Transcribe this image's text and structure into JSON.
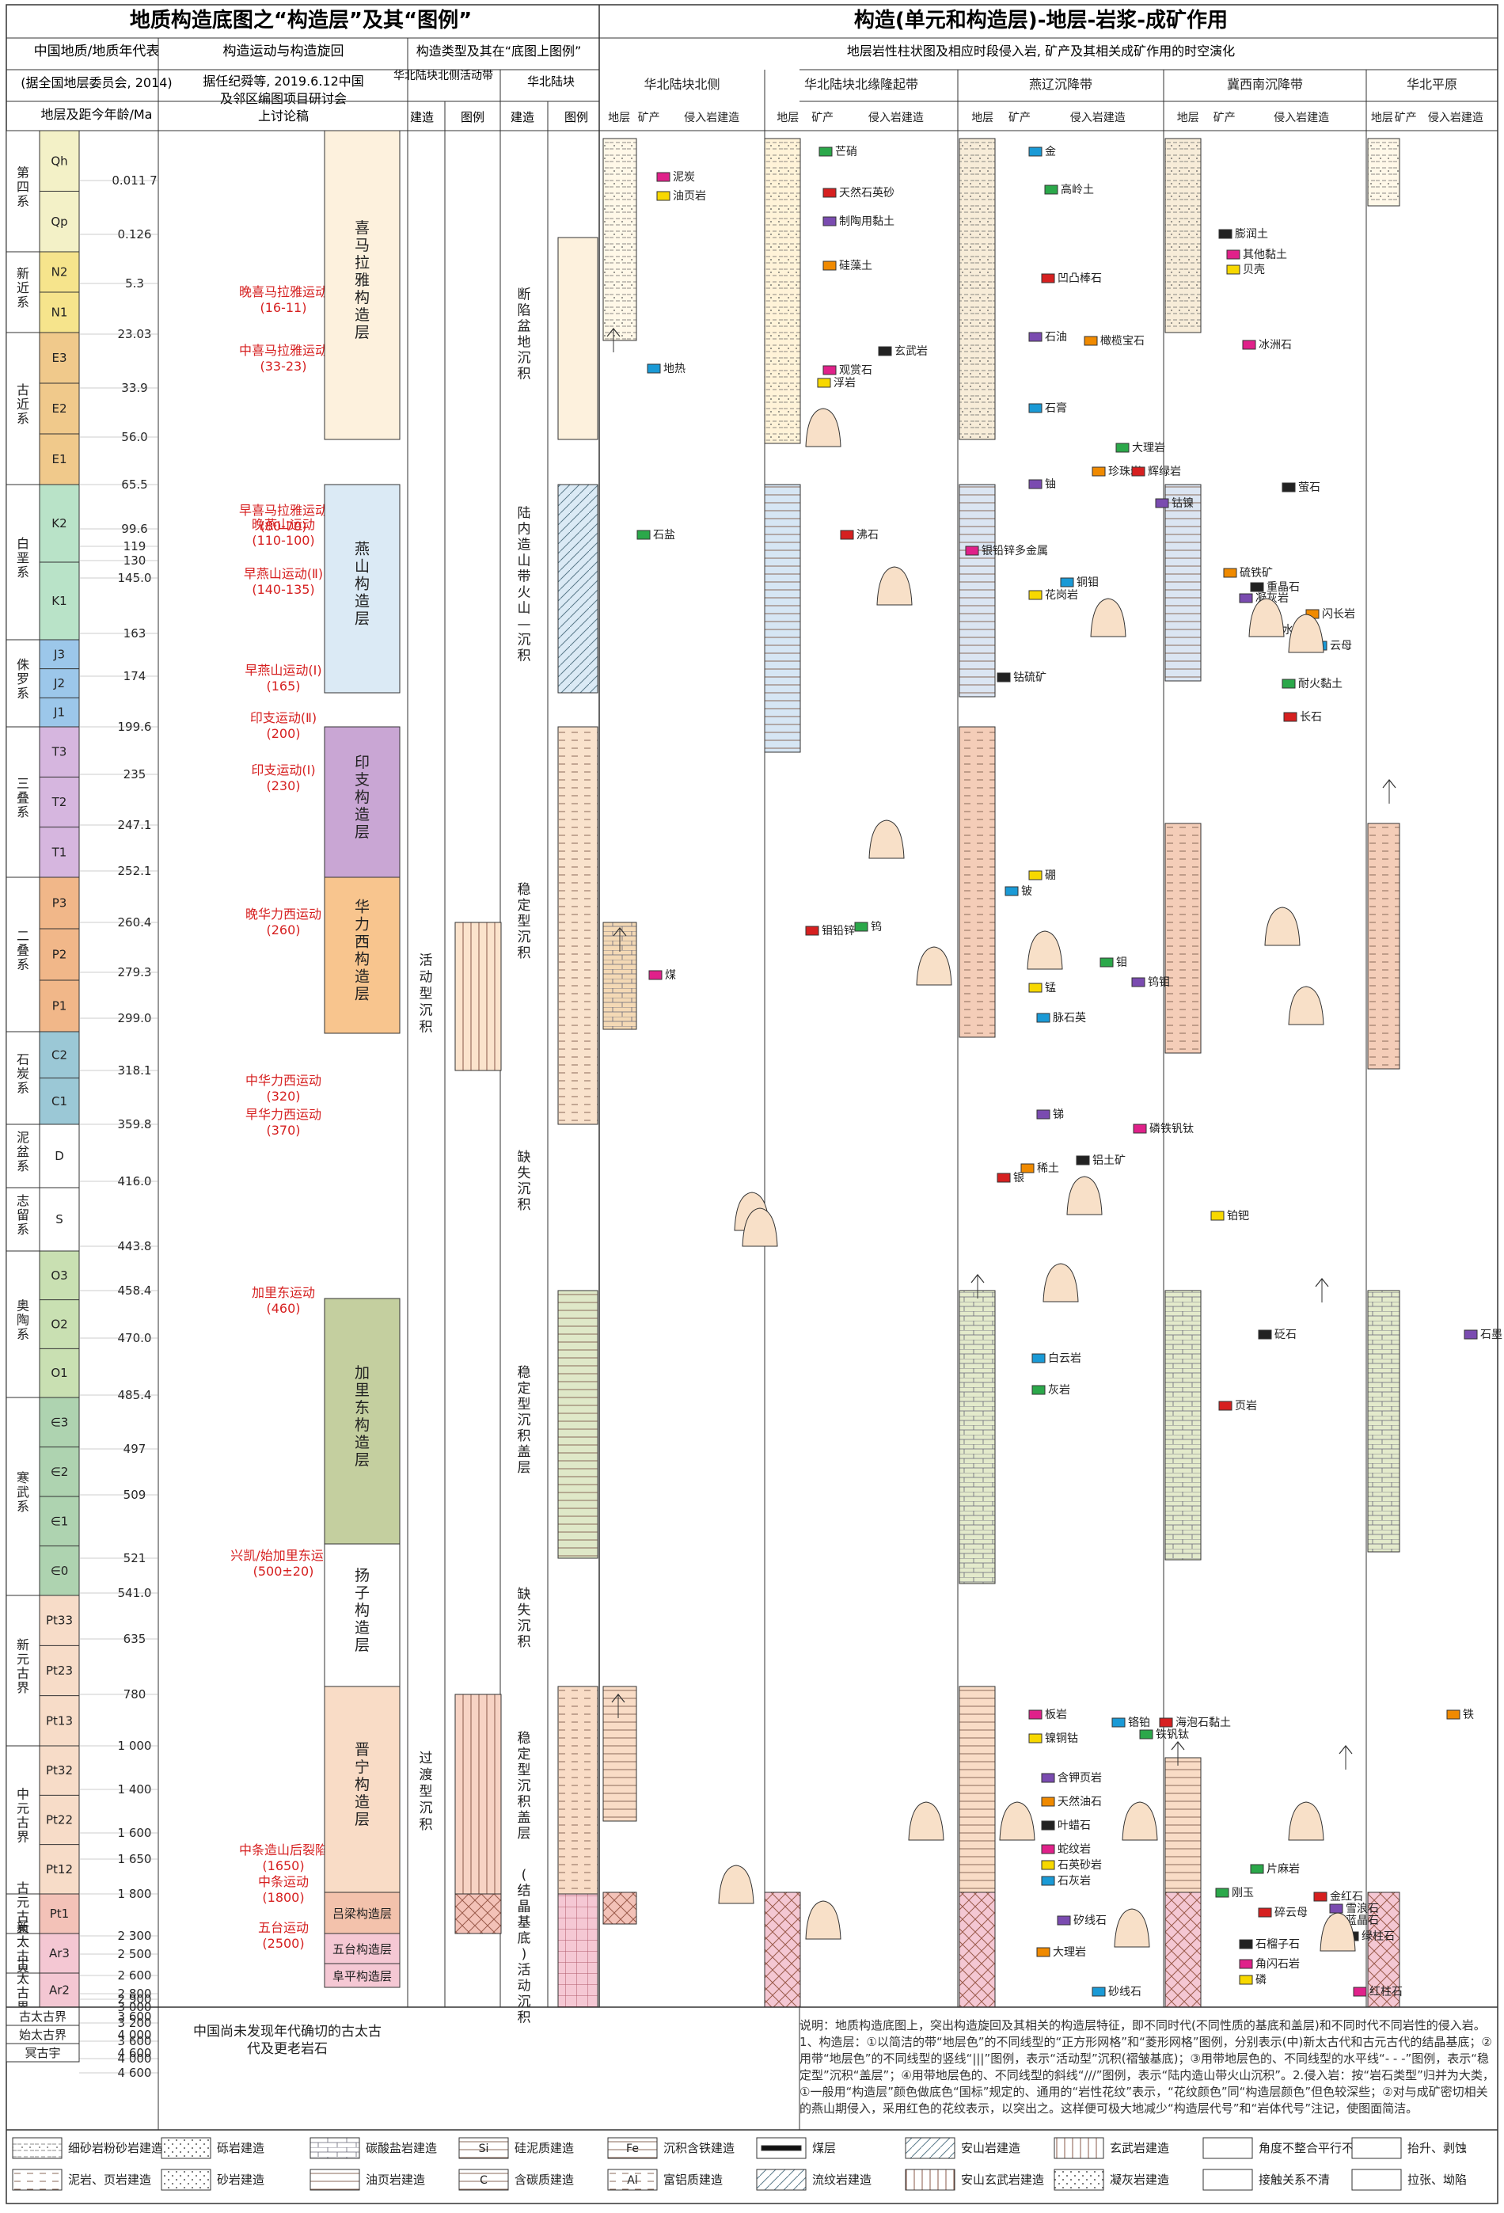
{
  "titles": {
    "left": "地质构造底图之“构造层”及其“图例”",
    "right": "构造(单元和构造层)-地层-岩浆-成矿作用"
  },
  "headers": {
    "c1_line1": "中国地质/地质年代表",
    "c1_line2": "(据全国地层委员会, 2014)",
    "c1_line3": "地层及距今年龄/Ma",
    "c2_line1": "构造运动与构造旋回",
    "c2_line2": "据任纪舜等, 2019.6.12中国",
    "c2_line3": "及邻区编图项目研讨会",
    "c2_line4": "上讨论稿",
    "c3_title": "构造类型及其在“底图上图例”",
    "c3_sub": "华北陆块北侧活动带",
    "c3_a": "建造",
    "c3_b": "图例",
    "c4_sub": "华北陆块",
    "c4_a": "建造",
    "c4_b": "图例",
    "right_sub": "地层岩性柱状图及相应时段侵入岩, 矿产及其相关成矿作用的时空演化"
  },
  "units": [
    {
      "name": "华北陆块北侧",
      "cols": [
        "地层",
        "矿产",
        "侵入岩建造"
      ]
    },
    {
      "name": "华北陆块北缘隆起带",
      "cols": [
        "地层",
        "矿产",
        "侵入岩建造"
      ]
    },
    {
      "name": "燕辽沉降带",
      "cols": [
        "地层",
        "矿产",
        "侵入岩建造"
      ]
    },
    {
      "name": "冀西南沉降带",
      "cols": [
        "地层",
        "矿产",
        "侵入岩建造"
      ]
    },
    {
      "name": "华北平原",
      "cols": [
        "地层",
        "矿产",
        "侵入岩建造"
      ]
    }
  ],
  "systems": [
    {
      "name": "第四系",
      "color": "#f3f1c7",
      "series": [
        {
          "code": "Qh"
        },
        {
          "code": "Qp"
        }
      ]
    },
    {
      "name": "新近系",
      "color": "#f6e48c",
      "series": [
        {
          "code": "N2"
        },
        {
          "code": "N1"
        }
      ]
    },
    {
      "name": "古近系",
      "color": "#f0c98b",
      "series": [
        {
          "code": "E3"
        },
        {
          "code": "E2"
        },
        {
          "code": "E1"
        }
      ]
    },
    {
      "name": "白垩系",
      "color": "#b9e3c8",
      "series": [
        {
          "code": "K2"
        },
        {
          "code": "K1"
        }
      ]
    },
    {
      "name": "侏罗系",
      "color": "#9cc7ea",
      "series": [
        {
          "code": "J3"
        },
        {
          "code": "J2"
        },
        {
          "code": "J1"
        }
      ]
    },
    {
      "name": "三叠系",
      "color": "#d6b6df",
      "series": [
        {
          "code": "T3"
        },
        {
          "code": "T2"
        },
        {
          "code": "T1"
        }
      ]
    },
    {
      "name": "二叠系",
      "color": "#f1b789",
      "series": [
        {
          "code": "P3"
        },
        {
          "code": "P2"
        },
        {
          "code": "P1"
        }
      ]
    },
    {
      "name": "石炭系",
      "color": "#9bc8d6",
      "series": [
        {
          "code": "C2"
        },
        {
          "code": "C1"
        }
      ]
    },
    {
      "name": "泥盆系",
      "color": "#ffffff",
      "series": [
        {
          "code": "D"
        }
      ]
    },
    {
      "name": "志留系",
      "color": "#ffffff",
      "series": [
        {
          "code": "S"
        }
      ]
    },
    {
      "name": "奥陶系",
      "color": "#c9e0b2",
      "series": [
        {
          "code": "O3"
        },
        {
          "code": "O2"
        },
        {
          "code": "O1"
        }
      ]
    },
    {
      "name": "寒武系",
      "color": "#aed3b0",
      "series": [
        {
          "code": "∈3"
        },
        {
          "code": "∈2"
        },
        {
          "code": "∈1"
        },
        {
          "code": "∈0"
        }
      ]
    },
    {
      "name": "新元古界",
      "color": "#f7dcc8",
      "series": [
        {
          "code": "Pt33"
        },
        {
          "code": "Pt23"
        },
        {
          "code": "Pt13"
        }
      ]
    },
    {
      "name": "中元古界",
      "color": "#f7dcc8",
      "series": [
        {
          "code": "Pt32"
        },
        {
          "code": "Pt22"
        },
        {
          "code": "Pt12"
        }
      ]
    },
    {
      "name": "古元古界",
      "color": "#f3c2b8",
      "series": [
        {
          "code": "Pt1"
        }
      ]
    },
    {
      "name": "新太古界",
      "color": "#f4c7d3",
      "series": [
        {
          "code": "Ar3"
        }
      ]
    },
    {
      "name": "古太古界",
      "color": "#f4c7d3",
      "series": [
        {
          "code": "Ar2"
        }
      ]
    }
  ],
  "ages": [
    "0.011 7",
    "0.126",
    "5.3",
    "23.03",
    "33.9",
    "56.0",
    "65.5",
    "99.6",
    "119",
    "130",
    "145.0",
    "163",
    "174",
    "199.6",
    "235",
    "247.1",
    "252.1",
    "260.4",
    "279.3",
    "299.0",
    "318.1",
    "359.8",
    "416.0",
    "443.8",
    "458.4",
    "470.0",
    "485.4",
    "497",
    "509",
    "521",
    "541.0",
    "635",
    "780",
    "1 000",
    "1 400",
    "1 600",
    "1 650",
    "1 800",
    "2 300",
    "2 500",
    "2 600",
    "2 800",
    "2 900",
    "3 000",
    "3 200",
    "3 600",
    "4 000",
    "4 600"
  ],
  "movements": [
    {
      "name": "晚喜马拉雅运动",
      "age": "(16-11)"
    },
    {
      "name": "中喜马拉雅运动",
      "age": "(33-23)"
    },
    {
      "name": "早喜马拉雅运动",
      "age": "(80-70)"
    },
    {
      "name": "晚燕山运动",
      "age": "(110-100)"
    },
    {
      "name": "早燕山运动(Ⅱ)",
      "age": "(140-135)"
    },
    {
      "name": "早燕山运动(Ⅰ)",
      "age": "(165)"
    },
    {
      "name": "印支运动(Ⅱ)",
      "age": "(200)"
    },
    {
      "name": "印支运动(Ⅰ)",
      "age": "(230)"
    },
    {
      "name": "晚华力西运动",
      "age": "(260)"
    },
    {
      "name": "中华力西运动",
      "age": "(320)"
    },
    {
      "name": "早华力西运动",
      "age": "(370)"
    },
    {
      "name": "加里东运动",
      "age": "(460)"
    },
    {
      "name": "兴凯/始加里东运动",
      "age": "(500±20)"
    },
    {
      "name": "中条造山后裂陷",
      "age": "(1650)"
    },
    {
      "name": "中条运动",
      "age": "(1800)"
    },
    {
      "name": "五台运动",
      "age": "(2500)"
    }
  ],
  "layers": [
    {
      "name": "喜马拉雅构造层",
      "color": "#fdf1dd"
    },
    {
      "name": "燕山构造层",
      "color": "#dbeaf5"
    },
    {
      "name": "印支构造层",
      "color": "#c9a6d4"
    },
    {
      "name": "华力西构造层",
      "color": "#f8c58e"
    },
    {
      "name": "加里东构造层",
      "color": "#c4cf9f"
    },
    {
      "name": "扬子构造层",
      "color": "#ffffff"
    },
    {
      "name": "晋宁构造层",
      "color": "#f9dcc6"
    },
    {
      "name": "吕梁构造层",
      "color": "#f3c2ac"
    },
    {
      "name": "五台构造层",
      "color": "#f5c8d4"
    },
    {
      "name": "阜平构造层",
      "color": "#f5c8d4"
    }
  ],
  "north_belt": [
    {
      "name": "活动型沉积",
      "color": "#fbe3cc"
    },
    {
      "name": "过渡型沉积",
      "color": "#f7d3c4"
    }
  ],
  "craton_types": [
    {
      "name": "断陷盆地沉积",
      "color": "#fdf1dd"
    },
    {
      "name": "陆内造山带火山—沉积",
      "color": "#dbeaf5"
    },
    {
      "name": "稳定型沉积",
      "color": "#f9e2cc"
    },
    {
      "name": "缺失沉积",
      "color": "#ffffff"
    },
    {
      "name": "稳定型沉积盖层",
      "color": "#dfe8c8"
    },
    {
      "name": "缺失沉积",
      "color": "#ffffff"
    },
    {
      "name": "稳定型沉积盖层",
      "color": "#f9dcc6"
    },
    {
      "name": "(结晶基底)活动沉积",
      "color": "#f5c8d4"
    }
  ],
  "bottom_rows": [
    {
      "name": "古太古界",
      "age": "3 600"
    },
    {
      "name": "始太古界",
      "age": "4 000"
    },
    {
      "name": "冥古宇",
      "age": "4 600"
    }
  ],
  "side_note": "中国尚未发现年代确切的古太古代及更老岩石",
  "note": "说明：地质构造底图上，突出构造旋回及其相关的构造层特征，即不同时代(不同性质的基底和盖层)和不同时代不同岩性的侵入岩。1、构造层：①以简洁的带“地层色”的不同线型的“正方形网格”和“菱形网格”图例，分别表示(中)新太古代和古元古代的结晶基底；②用带“地层色”的不同线型的竖线“|||”图例，表示“活动型”沉积(褶皱基底)；③用带地层色的、不同线型的水平线“- - -”图例，表示“稳定型”沉积“盖层”；④用带地层色的、不同线型的斜线“///”图例，表示“陆内造山带火山沉积”。2.侵入岩：按“岩石类型”归并为大类，①一般用“构造层”颜色做底色“国标”规定的、通用的“岩性花纹”表示，“花纹颜色”同“构造层颜色”但色较深些；②对与成矿密切相关的燕山期侵入，采用红色的花纹表示，以突出之。这样便可极大地减少“构造层代号”和“岩体代号”注记，使图面简洁。",
  "legend": [
    {
      "label": "细砂岩粉砂岩建造"
    },
    {
      "label": "砾岩建造"
    },
    {
      "label": "碳酸盐岩建造"
    },
    {
      "label": "硅泥质建造",
      "sym": "Si"
    },
    {
      "label": "沉积含铁建造",
      "sym": "Fe"
    },
    {
      "label": "煤层"
    },
    {
      "label": "安山岩建造"
    },
    {
      "label": "玄武岩建造"
    },
    {
      "label": "角度不整合平行不整合"
    },
    {
      "label": "抬升、剥蚀"
    },
    {
      "label": "泥岩、页岩建造"
    },
    {
      "label": "砂岩建造"
    },
    {
      "label": "油页岩建造"
    },
    {
      "label": "含碳质建造",
      "sym": "C"
    },
    {
      "label": "富铝质建造",
      "sym": "Al"
    },
    {
      "label": "流纹岩建造"
    },
    {
      "label": "安山玄武岩建造"
    },
    {
      "label": "凝灰岩建造"
    },
    {
      "label": "接触关系不清"
    },
    {
      "label": "拉张、坳陷"
    }
  ],
  "minerals": [
    {
      "name": "泥炭"
    },
    {
      "name": "油页岩"
    },
    {
      "name": "地热"
    },
    {
      "name": "芒硝"
    },
    {
      "name": "天然石英砂"
    },
    {
      "name": "制陶用黏土"
    },
    {
      "name": "硅藻土"
    },
    {
      "name": "玄武岩"
    },
    {
      "name": "观赏石"
    },
    {
      "name": "浮岩"
    },
    {
      "name": "金"
    },
    {
      "name": "高岭土"
    },
    {
      "name": "凹凸棒石"
    },
    {
      "name": "石油"
    },
    {
      "name": "橄榄宝石"
    },
    {
      "name": "膨润土"
    },
    {
      "name": "其他黏土"
    },
    {
      "name": "贝壳"
    },
    {
      "name": "石膏"
    },
    {
      "name": "石盐"
    },
    {
      "name": "沸石"
    },
    {
      "name": "铀"
    },
    {
      "name": "珍珠岩"
    },
    {
      "name": "萤石"
    },
    {
      "name": "银铅锌多金属"
    },
    {
      "name": "花岗岩"
    },
    {
      "name": "铜钼"
    },
    {
      "name": "大理岩"
    },
    {
      "name": "辉绿岩"
    },
    {
      "name": "钴镍"
    },
    {
      "name": "硫铁矿"
    },
    {
      "name": "重晶石"
    },
    {
      "name": "冰洲石"
    },
    {
      "name": "水晶"
    },
    {
      "name": "云母"
    },
    {
      "name": "耐火黏土"
    },
    {
      "name": "长石"
    },
    {
      "name": "凝灰岩"
    },
    {
      "name": "闪长岩"
    },
    {
      "name": "钴硫矿"
    },
    {
      "name": "煤"
    },
    {
      "name": "锰"
    },
    {
      "name": "脉石英"
    },
    {
      "name": "钼"
    },
    {
      "name": "银"
    },
    {
      "name": "锑"
    },
    {
      "name": "稀土"
    },
    {
      "name": "铝土矿"
    },
    {
      "name": "磷铁钒钛"
    },
    {
      "name": "铂钯"
    },
    {
      "name": "白云岩"
    },
    {
      "name": "灰岩"
    },
    {
      "name": "页岩"
    },
    {
      "name": "石墨"
    },
    {
      "name": "铁"
    },
    {
      "name": "砭石"
    },
    {
      "name": "板岩"
    },
    {
      "name": "镍铜钴"
    },
    {
      "name": "铬铂"
    },
    {
      "name": "铁钒钛"
    },
    {
      "name": "海泡石黏土"
    },
    {
      "name": "含钾页岩"
    },
    {
      "name": "天然油石"
    },
    {
      "name": "叶蜡石"
    },
    {
      "name": "蛇纹岩"
    },
    {
      "name": "石英砂岩"
    },
    {
      "name": "石灰岩"
    },
    {
      "name": "刚玉"
    },
    {
      "name": "碎云母"
    },
    {
      "name": "矽线石"
    },
    {
      "name": "大理岩"
    },
    {
      "name": "石榴子石"
    },
    {
      "name": "角闪石岩"
    },
    {
      "name": "磷"
    },
    {
      "name": "砂线石"
    },
    {
      "name": "片麻岩"
    },
    {
      "name": "金红石"
    },
    {
      "name": "雪浪石"
    },
    {
      "name": "蓝晶石"
    },
    {
      "name": "绿柱石"
    },
    {
      "name": "红柱石"
    },
    {
      "name": "硼"
    },
    {
      "name": "铍"
    },
    {
      "name": "钨"
    },
    {
      "name": "钼铅锌"
    },
    {
      "name": "钨钼"
    }
  ]
}
